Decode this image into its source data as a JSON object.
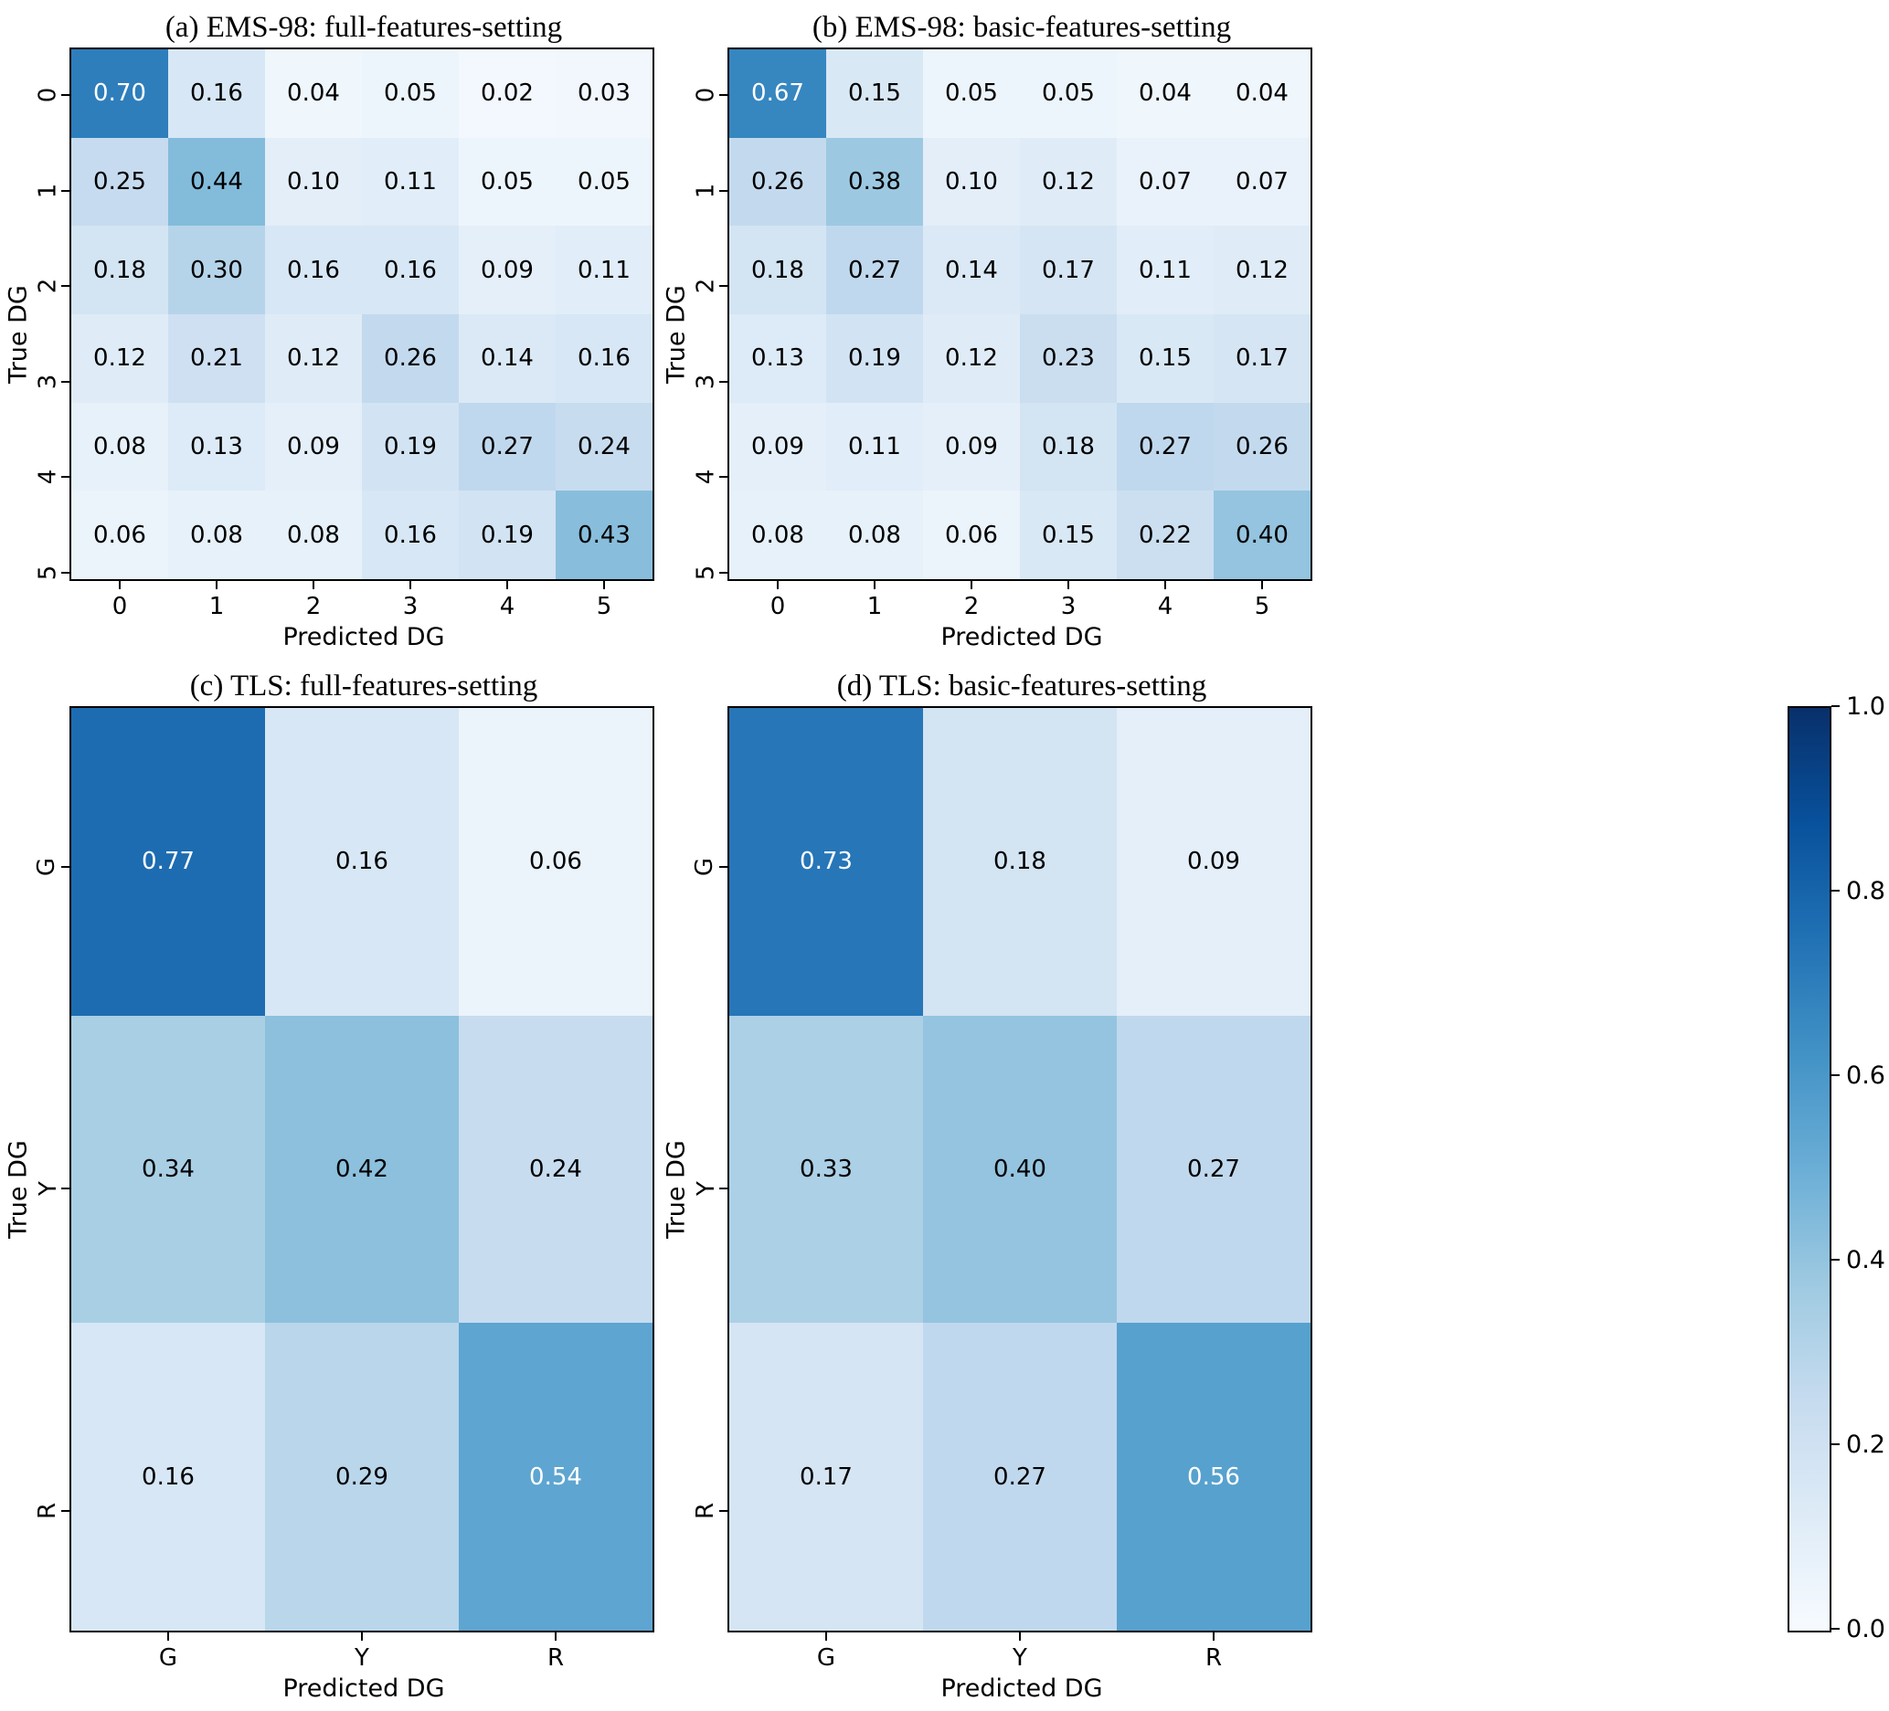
{
  "figure": {
    "xlabel": "Predicted DG",
    "ylabel": "True DG"
  },
  "colorbar": {
    "colormap": "Blues",
    "vmin": 0.0,
    "vmax": 1.0,
    "tick_labels": [
      "1.0",
      "0.8",
      "0.6",
      "0.4",
      "0.2",
      "0.0"
    ],
    "color_low": "#f7fbff",
    "color_high": "#08306b"
  },
  "chart_data": [
    {
      "type": "heatmap",
      "title": "(a) EMS-98: full-features-setting",
      "xlabel": "Predicted DG",
      "ylabel": "True DG",
      "x_ticks": [
        "0",
        "1",
        "2",
        "3",
        "4",
        "5"
      ],
      "y_ticks": [
        "0",
        "1",
        "2",
        "3",
        "4",
        "5"
      ],
      "vmin": 0.0,
      "vmax": 1.0,
      "colormap": "Blues",
      "values": [
        [
          0.7,
          0.16,
          0.04,
          0.05,
          0.02,
          0.03
        ],
        [
          0.25,
          0.44,
          0.1,
          0.11,
          0.05,
          0.05
        ],
        [
          0.18,
          0.3,
          0.16,
          0.16,
          0.09,
          0.11
        ],
        [
          0.12,
          0.21,
          0.12,
          0.26,
          0.14,
          0.16
        ],
        [
          0.08,
          0.13,
          0.09,
          0.19,
          0.27,
          0.24
        ],
        [
          0.06,
          0.08,
          0.08,
          0.16,
          0.19,
          0.43
        ]
      ]
    },
    {
      "type": "heatmap",
      "title": "(b) EMS-98: basic-features-setting",
      "xlabel": "Predicted DG",
      "ylabel": "True DG",
      "x_ticks": [
        "0",
        "1",
        "2",
        "3",
        "4",
        "5"
      ],
      "y_ticks": [
        "0",
        "1",
        "2",
        "3",
        "4",
        "5"
      ],
      "vmin": 0.0,
      "vmax": 1.0,
      "colormap": "Blues",
      "values": [
        [
          0.67,
          0.15,
          0.05,
          0.05,
          0.04,
          0.04
        ],
        [
          0.26,
          0.38,
          0.1,
          0.12,
          0.07,
          0.07
        ],
        [
          0.18,
          0.27,
          0.14,
          0.17,
          0.11,
          0.12
        ],
        [
          0.13,
          0.19,
          0.12,
          0.23,
          0.15,
          0.17
        ],
        [
          0.09,
          0.11,
          0.09,
          0.18,
          0.27,
          0.26
        ],
        [
          0.08,
          0.08,
          0.06,
          0.15,
          0.22,
          0.4
        ]
      ]
    },
    {
      "type": "heatmap",
      "title": "(c) TLS: full-features-setting",
      "xlabel": "Predicted DG",
      "ylabel": "True DG",
      "x_ticks": [
        "G",
        "Y",
        "R"
      ],
      "y_ticks": [
        "G",
        "Y",
        "R"
      ],
      "vmin": 0.0,
      "vmax": 1.0,
      "colormap": "Blues",
      "values": [
        [
          0.77,
          0.16,
          0.06
        ],
        [
          0.34,
          0.42,
          0.24
        ],
        [
          0.16,
          0.29,
          0.54
        ]
      ]
    },
    {
      "type": "heatmap",
      "title": "(d) TLS: basic-features-setting",
      "xlabel": "Predicted DG",
      "ylabel": "True DG",
      "x_ticks": [
        "G",
        "Y",
        "R"
      ],
      "y_ticks": [
        "G",
        "Y",
        "R"
      ],
      "vmin": 0.0,
      "vmax": 1.0,
      "colormap": "Blues",
      "values": [
        [
          0.73,
          0.18,
          0.09
        ],
        [
          0.33,
          0.4,
          0.27
        ],
        [
          0.17,
          0.27,
          0.56
        ]
      ]
    }
  ]
}
